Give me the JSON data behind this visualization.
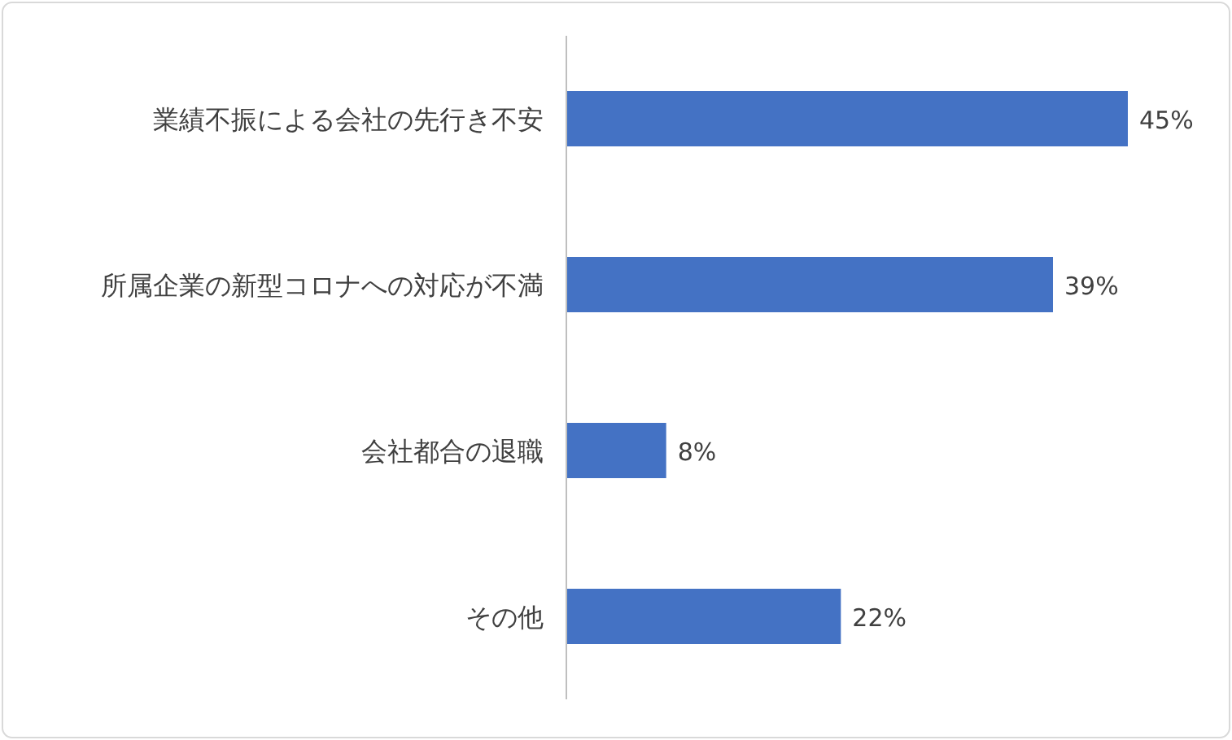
{
  "chart_data": {
    "type": "bar",
    "orientation": "horizontal",
    "categories": [
      "業績不振による会社の先行き不安",
      "所属企業の新型コロナへの対応が不満",
      "会社都合の退職",
      "その他"
    ],
    "values": [
      45,
      39,
      8,
      22
    ],
    "value_labels": [
      "45%",
      "39%",
      "8%",
      "22%"
    ],
    "color": "#4472c4"
  }
}
